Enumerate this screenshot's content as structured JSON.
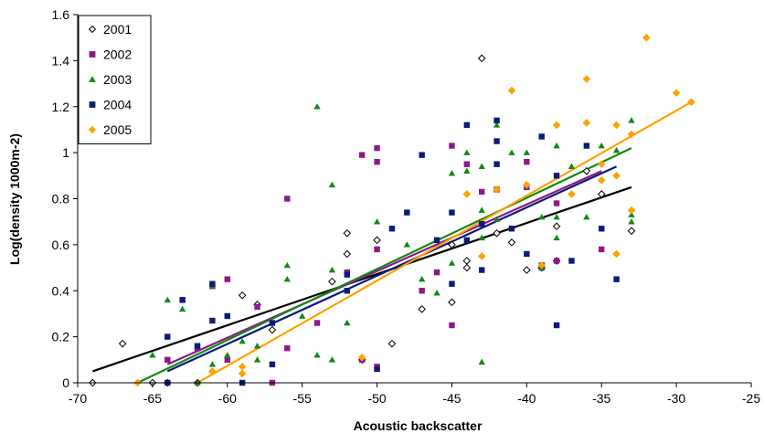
{
  "chart_data": {
    "type": "scatter",
    "xlabel": "Acoustic backscatter",
    "ylabel": "Log(density 1000m-2)",
    "xlim": [
      -70,
      -25
    ],
    "ylim": [
      0,
      1.6
    ],
    "x_ticks": [
      -70,
      -65,
      -60,
      -55,
      -50,
      -45,
      -40,
      -35,
      -30,
      -25
    ],
    "y_ticks": [
      0,
      0.2,
      0.4,
      0.6,
      0.8,
      1,
      1.2,
      1.4,
      1.6
    ],
    "y_tick_labels": [
      "0",
      "0.2",
      "0.4",
      "0.6",
      "0.8",
      "1",
      "1.2",
      "1.4",
      "1.6"
    ],
    "grid": false,
    "legend": "top-left",
    "series": [
      {
        "name": "2001",
        "marker": "diamond-open",
        "color": "#000000",
        "points": [
          [
            -69,
            0
          ],
          [
            -67,
            0.17
          ],
          [
            -65,
            0
          ],
          [
            -64,
            0
          ],
          [
            -62,
            0
          ],
          [
            -59,
            0.38
          ],
          [
            -58,
            0.34
          ],
          [
            -57,
            0.23
          ],
          [
            -53,
            0.44
          ],
          [
            -52,
            0.56
          ],
          [
            -52,
            0.65
          ],
          [
            -51,
            0.1
          ],
          [
            -50,
            0.62
          ],
          [
            -49,
            0.17
          ],
          [
            -47,
            0.32
          ],
          [
            -45,
            0.35
          ],
          [
            -45,
            0.6
          ],
          [
            -44,
            0.5
          ],
          [
            -44,
            0.53
          ],
          [
            -43,
            1.41
          ],
          [
            -42,
            0.65
          ],
          [
            -41,
            0.61
          ],
          [
            -40,
            0.49
          ],
          [
            -39,
            0.5
          ],
          [
            -38,
            0.68
          ],
          [
            -38,
            0.53
          ],
          [
            -36,
            0.92
          ],
          [
            -35,
            0.82
          ],
          [
            -33,
            0.66
          ]
        ],
        "trend": [
          [
            -69,
            0.05
          ],
          [
            -33,
            0.85
          ]
        ]
      },
      {
        "name": "2002",
        "marker": "square",
        "color": "#8b1a89",
        "points": [
          [
            -64,
            0.1
          ],
          [
            -63,
            0.36
          ],
          [
            -62,
            0.15
          ],
          [
            -61,
            0.42
          ],
          [
            -60,
            0.45
          ],
          [
            -60,
            0.1
          ],
          [
            -58,
            0.33
          ],
          [
            -57,
            0
          ],
          [
            -56,
            0.8
          ],
          [
            -56,
            0.15
          ],
          [
            -54,
            0.26
          ],
          [
            -52,
            0.48
          ],
          [
            -51,
            0.99
          ],
          [
            -50,
            1.02
          ],
          [
            -50,
            0.96
          ],
          [
            -50,
            0.58
          ],
          [
            -51,
            0.1
          ],
          [
            -50,
            0.07
          ],
          [
            -47,
            0.4
          ],
          [
            -46,
            0.48
          ],
          [
            -45,
            1.03
          ],
          [
            -45,
            0.25
          ],
          [
            -44,
            0.95
          ],
          [
            -43,
            0.83
          ],
          [
            -42,
            0.84
          ],
          [
            -40,
            0.85
          ],
          [
            -40,
            0.96
          ],
          [
            -39,
            0.5
          ],
          [
            -38,
            0.78
          ],
          [
            -38,
            0.53
          ],
          [
            -35,
            0.58
          ]
        ],
        "trend": [
          [
            -64,
            0.08
          ],
          [
            -35,
            0.92
          ]
        ]
      },
      {
        "name": "2003",
        "marker": "triangle",
        "color": "#118a11",
        "points": [
          [
            -65,
            0.12
          ],
          [
            -64,
            0.36
          ],
          [
            -63,
            0.32
          ],
          [
            -62,
            0
          ],
          [
            -61,
            0.42
          ],
          [
            -61,
            0.08
          ],
          [
            -60,
            0.12
          ],
          [
            -59,
            0.18
          ],
          [
            -58,
            0.1
          ],
          [
            -58,
            0.16
          ],
          [
            -56,
            0.51
          ],
          [
            -56,
            0.45
          ],
          [
            -55,
            0.29
          ],
          [
            -54,
            1.2
          ],
          [
            -54,
            0.12
          ],
          [
            -53,
            0.86
          ],
          [
            -53,
            0.49
          ],
          [
            -53,
            0.1
          ],
          [
            -52,
            0.26
          ],
          [
            -50,
            0.7
          ],
          [
            -48,
            0.6
          ],
          [
            -47,
            0.45
          ],
          [
            -46,
            0.39
          ],
          [
            -45,
            0.91
          ],
          [
            -45,
            0.52
          ],
          [
            -44,
            1
          ],
          [
            -44,
            0.92
          ],
          [
            -43,
            0.94
          ],
          [
            -43,
            0.75
          ],
          [
            -43,
            0.63
          ],
          [
            -43,
            0.09
          ],
          [
            -42,
            1.12
          ],
          [
            -42,
            0.71
          ],
          [
            -41,
            1
          ],
          [
            -40,
            1
          ],
          [
            -39,
            0.72
          ],
          [
            -39,
            0.5
          ],
          [
            -38,
            1.03
          ],
          [
            -38,
            0.72
          ],
          [
            -38,
            0.63
          ],
          [
            -37,
            0.94
          ],
          [
            -36,
            0.72
          ],
          [
            -35,
            1.03
          ],
          [
            -34,
            1.01
          ],
          [
            -33,
            1.14
          ],
          [
            -33,
            0.73
          ],
          [
            -33,
            0.7
          ]
        ],
        "trend": [
          [
            -66,
            0
          ],
          [
            -33,
            1.02
          ]
        ]
      },
      {
        "name": "2004",
        "marker": "square",
        "color": "#0d1a78",
        "points": [
          [
            -64,
            0.2
          ],
          [
            -64,
            0
          ],
          [
            -63,
            0.36
          ],
          [
            -62,
            0.16
          ],
          [
            -61,
            0.43
          ],
          [
            -61,
            0.27
          ],
          [
            -60,
            0.29
          ],
          [
            -59,
            0
          ],
          [
            -57,
            0.26
          ],
          [
            -57,
            0.08
          ],
          [
            -52,
            0.4
          ],
          [
            -52,
            0.47
          ],
          [
            -50,
            0.06
          ],
          [
            -49,
            0.67
          ],
          [
            -48,
            0.74
          ],
          [
            -47,
            0.99
          ],
          [
            -46,
            0.62
          ],
          [
            -45,
            0.74
          ],
          [
            -45,
            0.43
          ],
          [
            -44,
            0.62
          ],
          [
            -44,
            1.12
          ],
          [
            -43,
            0.69
          ],
          [
            -43,
            0.49
          ],
          [
            -42,
            1.14
          ],
          [
            -42,
            1.05
          ],
          [
            -42,
            0.95
          ],
          [
            -41,
            0.67
          ],
          [
            -40,
            0.56
          ],
          [
            -39,
            1.07
          ],
          [
            -39,
            0.51
          ],
          [
            -38,
            0.9
          ],
          [
            -38,
            0.25
          ],
          [
            -37,
            0.53
          ],
          [
            -36,
            1.03
          ],
          [
            -35,
            0.67
          ],
          [
            -34,
            0.45
          ]
        ],
        "trend": [
          [
            -64,
            0.05
          ],
          [
            -34,
            0.94
          ]
        ]
      },
      {
        "name": "2005",
        "marker": "diamond",
        "color": "#ffa100",
        "points": [
          [
            -66,
            0
          ],
          [
            -61,
            0.05
          ],
          [
            -59,
            0.07
          ],
          [
            -59,
            0.04
          ],
          [
            -51,
            0.11
          ],
          [
            -44,
            0.82
          ],
          [
            -43,
            0.55
          ],
          [
            -42,
            0.84
          ],
          [
            -41,
            1.27
          ],
          [
            -40,
            0.86
          ],
          [
            -39,
            0.51
          ],
          [
            -38,
            1.12
          ],
          [
            -37,
            0.82
          ],
          [
            -36,
            1.32
          ],
          [
            -36,
            1.13
          ],
          [
            -35,
            0.95
          ],
          [
            -35,
            0.88
          ],
          [
            -34,
            1.12
          ],
          [
            -34,
            0.9
          ],
          [
            -34,
            0.56
          ],
          [
            -33,
            0.75
          ],
          [
            -33,
            1.08
          ],
          [
            -32,
            1.5
          ],
          [
            -30,
            1.26
          ],
          [
            -29,
            1.22
          ]
        ],
        "trend": [
          [
            -62,
            0
          ],
          [
            -29,
            1.22
          ]
        ]
      }
    ]
  }
}
